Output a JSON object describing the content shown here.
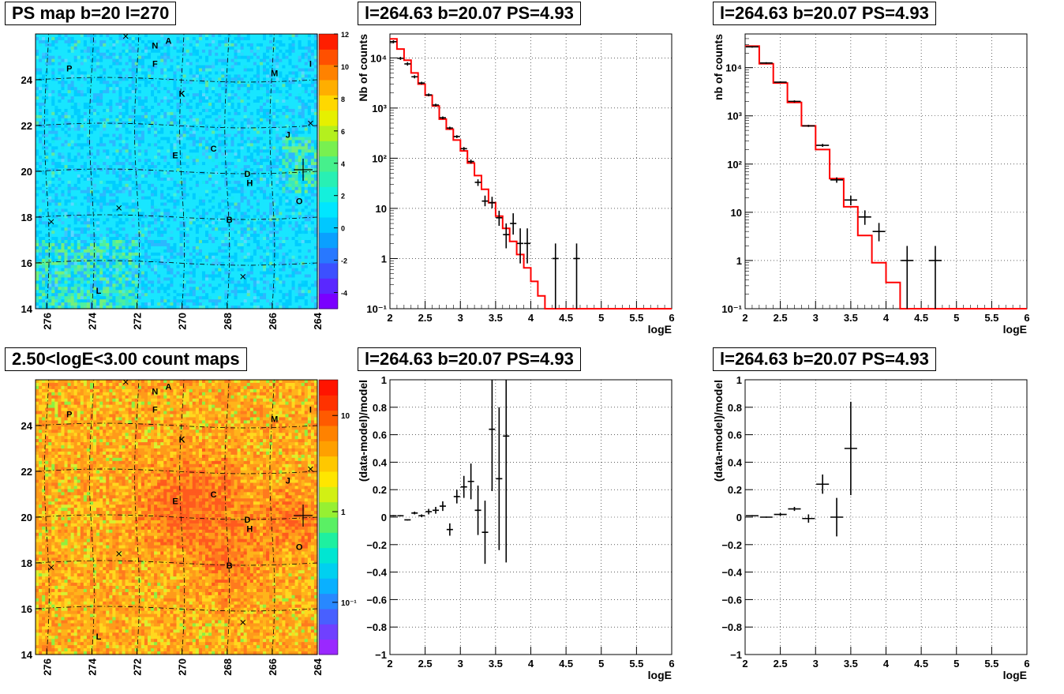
{
  "titles": {
    "map_top": "PS map b=20 l=270",
    "map_bottom": "2.50<logE<3.00 count maps",
    "spec_left_top": "l=264.63 b=20.07 PS=4.93",
    "spec_right_top": "l=264.63 b=20.07 PS=4.93",
    "res_left": "l=264.63 b=20.07 PS=4.93",
    "res_right": "l=264.63 b=20.07 PS=4.93"
  },
  "colors": {
    "model_line": "#ff0000",
    "data_marker": "#000000",
    "grid": "#000000"
  },
  "maps": {
    "x_ticks": [
      "276",
      "274",
      "272",
      "270",
      "268",
      "266",
      "264"
    ],
    "y_ticks": [
      "14",
      "16",
      "18",
      "20",
      "22",
      "24"
    ],
    "source_labels": [
      {
        "t": "A",
        "x": 270.6,
        "y": 25.7
      },
      {
        "t": "N",
        "x": 271.2,
        "y": 25.5
      },
      {
        "t": "F",
        "x": 271.2,
        "y": 24.7
      },
      {
        "t": "P",
        "x": 275.0,
        "y": 24.5
      },
      {
        "t": "M",
        "x": 265.9,
        "y": 24.3
      },
      {
        "t": "I",
        "x": 264.3,
        "y": 24.7
      },
      {
        "t": "K",
        "x": 270.0,
        "y": 23.4
      },
      {
        "t": "J",
        "x": 265.3,
        "y": 21.6
      },
      {
        "t": "C",
        "x": 268.6,
        "y": 21.0
      },
      {
        "t": "E",
        "x": 270.3,
        "y": 20.7
      },
      {
        "t": "D",
        "x": 267.1,
        "y": 19.9
      },
      {
        "t": "H",
        "x": 267.0,
        "y": 19.5
      },
      {
        "t": "O",
        "x": 264.8,
        "y": 18.7
      },
      {
        "t": "B",
        "x": 267.9,
        "y": 17.9
      },
      {
        "t": "L",
        "x": 273.7,
        "y": 14.8
      }
    ],
    "x_marks": [
      {
        "x": 272.5,
        "y": 25.9
      },
      {
        "x": 264.3,
        "y": 22.1
      },
      {
        "x": 272.8,
        "y": 18.4
      },
      {
        "x": 275.8,
        "y": 17.8
      },
      {
        "x": 267.3,
        "y": 15.4
      }
    ],
    "cross_marker": {
      "l": 264.63,
      "b": 20.07
    },
    "top_scale": {
      "ticks": [
        "12",
        "10",
        "8",
        "6",
        "4",
        "2",
        "0",
        "-2",
        "-4"
      ],
      "min": -5,
      "max": 12
    },
    "bottom_scale": {
      "ticks": [
        "10",
        "1",
        "10⁻¹"
      ]
    }
  },
  "chart_data": [
    {
      "type": "line",
      "name": "spectrum-left",
      "title": "l=264.63 b=20.07 PS=4.93",
      "xlabel": "logE",
      "ylabel": "Nb of counts",
      "xlim": [
        2,
        6
      ],
      "ylim": [
        0.1,
        30000
      ],
      "yscale": "log",
      "x_ticks": [
        "2",
        "2.5",
        "3",
        "3.5",
        "4",
        "4.5",
        "5",
        "5.5",
        "6"
      ],
      "y_ticks": [
        {
          "v": 0.1,
          "label": "10⁻¹"
        },
        {
          "v": 1,
          "label": "1"
        },
        {
          "v": 10,
          "label": "10"
        },
        {
          "v": 100,
          "label": "10²"
        },
        {
          "v": 1000,
          "label": "10³"
        },
        {
          "v": 10000,
          "label": "10⁴"
        }
      ],
      "grid": true,
      "model_steps": [
        [
          2.0,
          24000
        ],
        [
          2.1,
          15000
        ],
        [
          2.2,
          9000
        ],
        [
          2.3,
          5000
        ],
        [
          2.4,
          3000
        ],
        [
          2.5,
          1800
        ],
        [
          2.6,
          1100
        ],
        [
          2.7,
          600
        ],
        [
          2.8,
          380
        ],
        [
          2.9,
          230
        ],
        [
          3.0,
          140
        ],
        [
          3.1,
          80
        ],
        [
          3.2,
          45
        ],
        [
          3.3,
          24
        ],
        [
          3.4,
          13
        ],
        [
          3.5,
          7
        ],
        [
          3.6,
          4
        ],
        [
          3.7,
          2.2
        ],
        [
          3.8,
          1.2
        ],
        [
          3.9,
          0.65
        ],
        [
          4.0,
          0.35
        ],
        [
          4.1,
          0.18
        ],
        [
          4.2,
          0.1
        ],
        [
          4.3,
          0.1
        ]
      ],
      "data_points": [
        {
          "x": 2.05,
          "y": 21000,
          "lo": 19500,
          "hi": 22500
        },
        {
          "x": 2.15,
          "y": 9800,
          "lo": 9100,
          "hi": 10500
        },
        {
          "x": 2.25,
          "y": 7600,
          "lo": 7000,
          "hi": 8200
        },
        {
          "x": 2.35,
          "y": 4200,
          "lo": 3900,
          "hi": 4500
        },
        {
          "x": 2.45,
          "y": 3150,
          "lo": 2950,
          "hi": 3350
        },
        {
          "x": 2.55,
          "y": 1830,
          "lo": 1710,
          "hi": 1950
        },
        {
          "x": 2.65,
          "y": 1150,
          "lo": 1080,
          "hi": 1220
        },
        {
          "x": 2.75,
          "y": 640,
          "lo": 600,
          "hi": 680
        },
        {
          "x": 2.85,
          "y": 400,
          "lo": 375,
          "hi": 425
        },
        {
          "x": 2.95,
          "y": 270,
          "lo": 252,
          "hi": 288
        },
        {
          "x": 3.05,
          "y": 155,
          "lo": 143,
          "hi": 167
        },
        {
          "x": 3.15,
          "y": 86,
          "lo": 78,
          "hi": 94
        },
        {
          "x": 3.25,
          "y": 33,
          "lo": 28,
          "hi": 38
        },
        {
          "x": 3.35,
          "y": 14,
          "lo": 11,
          "hi": 18
        },
        {
          "x": 3.45,
          "y": 13,
          "lo": 10,
          "hi": 17
        },
        {
          "x": 3.55,
          "y": 6.5,
          "lo": 4.5,
          "hi": 9
        },
        {
          "x": 3.65,
          "y": 3,
          "lo": 1.6,
          "hi": 5
        },
        {
          "x": 3.75,
          "y": 5,
          "lo": 3,
          "hi": 8
        },
        {
          "x": 3.85,
          "y": 2,
          "lo": 0.8,
          "hi": 4
        },
        {
          "x": 3.95,
          "y": 2,
          "lo": 0.8,
          "hi": 4
        },
        {
          "x": 4.35,
          "y": 1,
          "lo": 0.1,
          "hi": 2
        },
        {
          "x": 4.65,
          "y": 1,
          "lo": 0.1,
          "hi": 2
        }
      ]
    },
    {
      "type": "line",
      "name": "spectrum-right",
      "title": "l=264.63 b=20.07 PS=4.93",
      "xlabel": "logE",
      "ylabel": "nb of counts",
      "xlim": [
        2,
        6
      ],
      "ylim": [
        0.1,
        50000
      ],
      "yscale": "log",
      "x_ticks": [
        "2",
        "2.5",
        "3",
        "3.5",
        "4",
        "4.5",
        "5",
        "5.5",
        "6"
      ],
      "y_ticks": [
        {
          "v": 0.1,
          "label": "10⁻¹"
        },
        {
          "v": 1,
          "label": "1"
        },
        {
          "v": 10,
          "label": "10"
        },
        {
          "v": 100,
          "label": "10²"
        },
        {
          "v": 1000,
          "label": "10³"
        },
        {
          "v": 10000,
          "label": "10⁴"
        }
      ],
      "grid": true,
      "model_steps": [
        [
          2.0,
          28000
        ],
        [
          2.2,
          12000
        ],
        [
          2.4,
          4800
        ],
        [
          2.6,
          1900
        ],
        [
          2.8,
          620
        ],
        [
          3.0,
          200
        ],
        [
          3.2,
          50
        ],
        [
          3.4,
          13
        ],
        [
          3.6,
          3.3
        ],
        [
          3.8,
          0.9
        ],
        [
          4.0,
          0.35
        ],
        [
          4.2,
          0.1
        ],
        [
          4.4,
          0.1
        ]
      ],
      "data_points": [
        {
          "x": 2.1,
          "y": 27000,
          "lo": 26000,
          "hi": 28000
        },
        {
          "x": 2.3,
          "y": 12500,
          "lo": 12000,
          "hi": 13000
        },
        {
          "x": 2.5,
          "y": 5000,
          "lo": 4800,
          "hi": 5200
        },
        {
          "x": 2.7,
          "y": 2000,
          "lo": 1900,
          "hi": 2100
        },
        {
          "x": 2.9,
          "y": 620,
          "lo": 590,
          "hi": 650
        },
        {
          "x": 3.1,
          "y": 245,
          "lo": 228,
          "hi": 262
        },
        {
          "x": 3.3,
          "y": 47,
          "lo": 41,
          "hi": 53
        },
        {
          "x": 3.5,
          "y": 18,
          "lo": 14,
          "hi": 22
        },
        {
          "x": 3.7,
          "y": 8,
          "lo": 5.5,
          "hi": 11
        },
        {
          "x": 3.9,
          "y": 4,
          "lo": 2.5,
          "hi": 6
        },
        {
          "x": 4.3,
          "y": 1,
          "lo": 0.1,
          "hi": 2
        },
        {
          "x": 4.7,
          "y": 1,
          "lo": 0.1,
          "hi": 2
        }
      ]
    },
    {
      "type": "scatter",
      "name": "residual-left",
      "title": "l=264.63 b=20.07 PS=4.93",
      "xlabel": "logE",
      "ylabel": "(data-model)/model",
      "xlim": [
        2,
        6
      ],
      "ylim": [
        -1,
        1
      ],
      "x_ticks": [
        "2",
        "2.5",
        "3",
        "3.5",
        "4",
        "4.5",
        "5",
        "5.5",
        "6"
      ],
      "y_ticks": [
        "-1",
        "-0.8",
        "-0.6",
        "-0.4",
        "-0.2",
        "0",
        "0.2",
        "0.4",
        "0.6",
        "0.8",
        "1"
      ],
      "grid": true,
      "data_points": [
        {
          "x": 2.05,
          "y": 0.01,
          "e": 0.005
        },
        {
          "x": 2.15,
          "y": 0.01,
          "e": 0.005
        },
        {
          "x": 2.25,
          "y": -0.02,
          "e": 0.005
        },
        {
          "x": 2.35,
          "y": 0.03,
          "e": 0.01
        },
        {
          "x": 2.45,
          "y": 0.01,
          "e": 0.01
        },
        {
          "x": 2.55,
          "y": 0.04,
          "e": 0.02
        },
        {
          "x": 2.65,
          "y": 0.05,
          "e": 0.025
        },
        {
          "x": 2.75,
          "y": 0.08,
          "e": 0.035
        },
        {
          "x": 2.85,
          "y": -0.09,
          "e": 0.045
        },
        {
          "x": 2.95,
          "y": 0.15,
          "e": 0.05
        },
        {
          "x": 3.05,
          "y": 0.22,
          "e": 0.08
        },
        {
          "x": 3.15,
          "y": 0.26,
          "e": 0.13
        },
        {
          "x": 3.25,
          "y": 0.05,
          "e": 0.18
        },
        {
          "x": 3.35,
          "y": -0.11,
          "e": 0.23
        },
        {
          "x": 3.45,
          "y": 0.64,
          "e": 0.45
        },
        {
          "x": 3.55,
          "y": 0.28,
          "e": 0.52
        },
        {
          "x": 3.65,
          "y": 0.59,
          "e": 0.92
        }
      ]
    },
    {
      "type": "scatter",
      "name": "residual-right",
      "title": "l=264.63 b=20.07 PS=4.93",
      "xlabel": "logE",
      "ylabel": "(data-model)/model",
      "xlim": [
        2,
        6
      ],
      "ylim": [
        -1,
        1
      ],
      "x_ticks": [
        "2",
        "2.5",
        "3",
        "3.5",
        "4",
        "4.5",
        "5",
        "5.5",
        "6"
      ],
      "y_ticks": [
        "-1",
        "-0.8",
        "-0.6",
        "-0.4",
        "-0.2",
        "0",
        "0.2",
        "0.4",
        "0.6",
        "0.8",
        "1"
      ],
      "grid": true,
      "data_points": [
        {
          "x": 2.1,
          "y": 0.01,
          "e": 0.005
        },
        {
          "x": 2.3,
          "y": 0.0,
          "e": 0.005
        },
        {
          "x": 2.5,
          "y": 0.02,
          "e": 0.01
        },
        {
          "x": 2.7,
          "y": 0.06,
          "e": 0.015
        },
        {
          "x": 2.9,
          "y": -0.01,
          "e": 0.03
        },
        {
          "x": 3.1,
          "y": 0.24,
          "e": 0.07
        },
        {
          "x": 3.3,
          "y": 0.0,
          "e": 0.14
        },
        {
          "x": 3.5,
          "y": 0.5,
          "e": 0.34
        }
      ]
    }
  ]
}
